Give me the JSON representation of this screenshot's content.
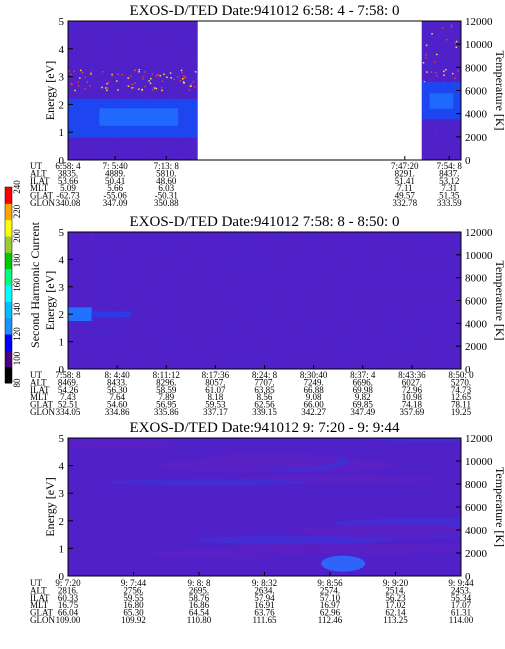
{
  "colors": {
    "background": "#5020c8",
    "band": "#1e46f0",
    "band_core": "#1f73ff",
    "speckle_red": "#e83a3a",
    "speckle_yellow": "#f3e33a",
    "frame": "#000000"
  },
  "colorbar": {
    "title": "Second Harmonic Current",
    "ticks": [
      "80",
      "100",
      "120",
      "140",
      "160",
      "180",
      "200",
      "220",
      "240"
    ],
    "colors": [
      "#000000",
      "#4b0082",
      "#0000ff",
      "#1e90ff",
      "#00bfff",
      "#00ffff",
      "#00ff7f",
      "#00cc00",
      "#9acd32",
      "#ffff00",
      "#ffa500",
      "#ff0000"
    ]
  },
  "chart_data": [
    {
      "type": "heatmap",
      "title": "EXOS-D/TED   Date:941012  6:58: 4 - 7:58: 0",
      "ylabel": "Energy [eV]",
      "y2label": "Temperature [K]",
      "ylim": [
        0,
        5
      ],
      "y2lim": [
        0,
        12000
      ],
      "yticks": [
        "0",
        "1",
        "2",
        "3",
        "4",
        "5"
      ],
      "y2ticks": [
        "0",
        "2000",
        "4000",
        "6000",
        "8000",
        "10000",
        "12000"
      ],
      "data_gaps": [
        [
          0.33,
          0.9
        ]
      ],
      "band": {
        "center_ev": 1.5,
        "halfwidth_ev": 0.7,
        "core_ev": 1.2
      },
      "speckle_rows_ev": [
        2.7,
        3.1
      ],
      "table": {
        "row_labels": [
          "UT",
          "ALT",
          "ILAT",
          "MLT",
          "GLAT",
          "GLON"
        ],
        "columns": [
          {
            "pos": 0.0,
            "values": [
              "6:58: 4",
              "3835.",
              "53.66",
              "5.09",
              "-62.73",
              "340.08"
            ]
          },
          {
            "pos": 0.12,
            "values": [
              "7: 5:40",
              "4889.",
              "50.41",
              "5.66",
              "-55.06",
              "347.09"
            ]
          },
          {
            "pos": 0.25,
            "values": [
              "7:13: 8",
              "5810.",
              "48.60",
              "6.03",
              "-50.31",
              "350.88"
            ]
          },
          {
            "pos": 0.857,
            "values": [
              "7:47:20",
              "8291.",
              "51.41",
              "7.11",
              "49.57",
              "332.78"
            ]
          },
          {
            "pos": 0.97,
            "values": [
              "7:54: 8",
              "8437.",
              "53.12",
              "7.31",
              "51.35",
              "333.59"
            ]
          }
        ]
      }
    },
    {
      "type": "heatmap",
      "title": "EXOS-D/TED   Date:941012  7:58: 8 - 8:50: 0",
      "ylabel": "Energy [eV]",
      "y2label": "Temperature [K]",
      "ylim": [
        0,
        5
      ],
      "y2lim": [
        0,
        12000
      ],
      "yticks": [
        "0",
        "1",
        "2",
        "3",
        "4",
        "5"
      ],
      "y2ticks": [
        "0",
        "2000",
        "4000",
        "6000",
        "8000",
        "10000",
        "12000"
      ],
      "data_gaps": [],
      "band": {
        "center_ev": 2.0,
        "halfwidth_ev": 0.25,
        "core_ev": 0.2
      },
      "speckle_rows_ev": [],
      "table": {
        "row_labels": [
          "UT",
          "ALT",
          "ILAT",
          "MLT",
          "GLAT",
          "GLON"
        ],
        "columns": [
          {
            "pos": 0.0,
            "values": [
              "7:58: 8",
              "8469.",
              "54.26",
              "7.43",
              "52.51",
              "334.05"
            ]
          },
          {
            "pos": 0.125,
            "values": [
              "8: 4:40",
              "8433.",
              "56.30",
              "7.64",
              "54.60",
              "334.86"
            ]
          },
          {
            "pos": 0.25,
            "values": [
              "8:11:12",
              "8296.",
              "58.59",
              "7.89",
              "56.95",
              "335.86"
            ]
          },
          {
            "pos": 0.375,
            "values": [
              "8:17:36",
              "8057.",
              "61.07",
              "8.18",
              "59.53",
              "337.17"
            ]
          },
          {
            "pos": 0.5,
            "values": [
              "8:24: 8",
              "7707.",
              "63.85",
              "8.56",
              "62.56",
              "339.15"
            ]
          },
          {
            "pos": 0.625,
            "values": [
              "8:30:40",
              "7249.",
              "66.88",
              "9.08",
              "66.00",
              "342.27"
            ]
          },
          {
            "pos": 0.75,
            "values": [
              "8:37: 4",
              "6696.",
              "69.98",
              "9.82",
              "69.85",
              "347.49"
            ]
          },
          {
            "pos": 0.875,
            "values": [
              "8:43:36",
              "6027.",
              "72.96",
              "10.98",
              "74.18",
              "357.69"
            ]
          },
          {
            "pos": 1.0,
            "values": [
              "8:50: 0",
              "5270.",
              "74.73",
              "12.65",
              "78.11",
              "19.25"
            ]
          }
        ]
      }
    },
    {
      "type": "heatmap",
      "title": "EXOS-D/TED   Date:941012  9: 7:20 - 9: 9:44",
      "ylabel": "Energy [eV]",
      "y2label": "Temperature [K]",
      "ylim": [
        0,
        5
      ],
      "y2lim": [
        0,
        12000
      ],
      "yticks": [
        "0",
        "1",
        "2",
        "3",
        "4",
        "5"
      ],
      "y2ticks": [
        "0",
        "2000",
        "4000",
        "6000",
        "8000",
        "10000",
        "12000"
      ],
      "data_gaps": [],
      "band": null,
      "speckle_rows_ev": [],
      "table": {
        "row_labels": [
          "UT",
          "ALT",
          "ILAT",
          "MLT",
          "GLAT",
          "GLON"
        ],
        "columns": [
          {
            "pos": 0.0,
            "values": [
              "9: 7:20",
              "2816.",
              "60.33",
              "16.75",
              "66.04",
              "109.00"
            ]
          },
          {
            "pos": 0.166667,
            "values": [
              "9: 7:44",
              "2756.",
              "59.55",
              "16.80",
              "65.30",
              "109.92"
            ]
          },
          {
            "pos": 0.333333,
            "values": [
              "9: 8: 8",
              "2695.",
              "58.76",
              "16.86",
              "64.54",
              "110.80"
            ]
          },
          {
            "pos": 0.5,
            "values": [
              "9: 8:32",
              "2634.",
              "57.94",
              "16.91",
              "63.76",
              "111.65"
            ]
          },
          {
            "pos": 0.666667,
            "values": [
              "9: 8:56",
              "2574.",
              "57.10",
              "16.97",
              "62.96",
              "112.46"
            ]
          },
          {
            "pos": 0.833333,
            "values": [
              "9: 9:20",
              "2514.",
              "56.23",
              "17.02",
              "62.14",
              "113.25"
            ]
          },
          {
            "pos": 1.0,
            "values": [
              "9: 9:44",
              "2453.",
              "55.34",
              "17.07",
              "61.31",
              "114.00"
            ]
          }
        ]
      }
    }
  ]
}
